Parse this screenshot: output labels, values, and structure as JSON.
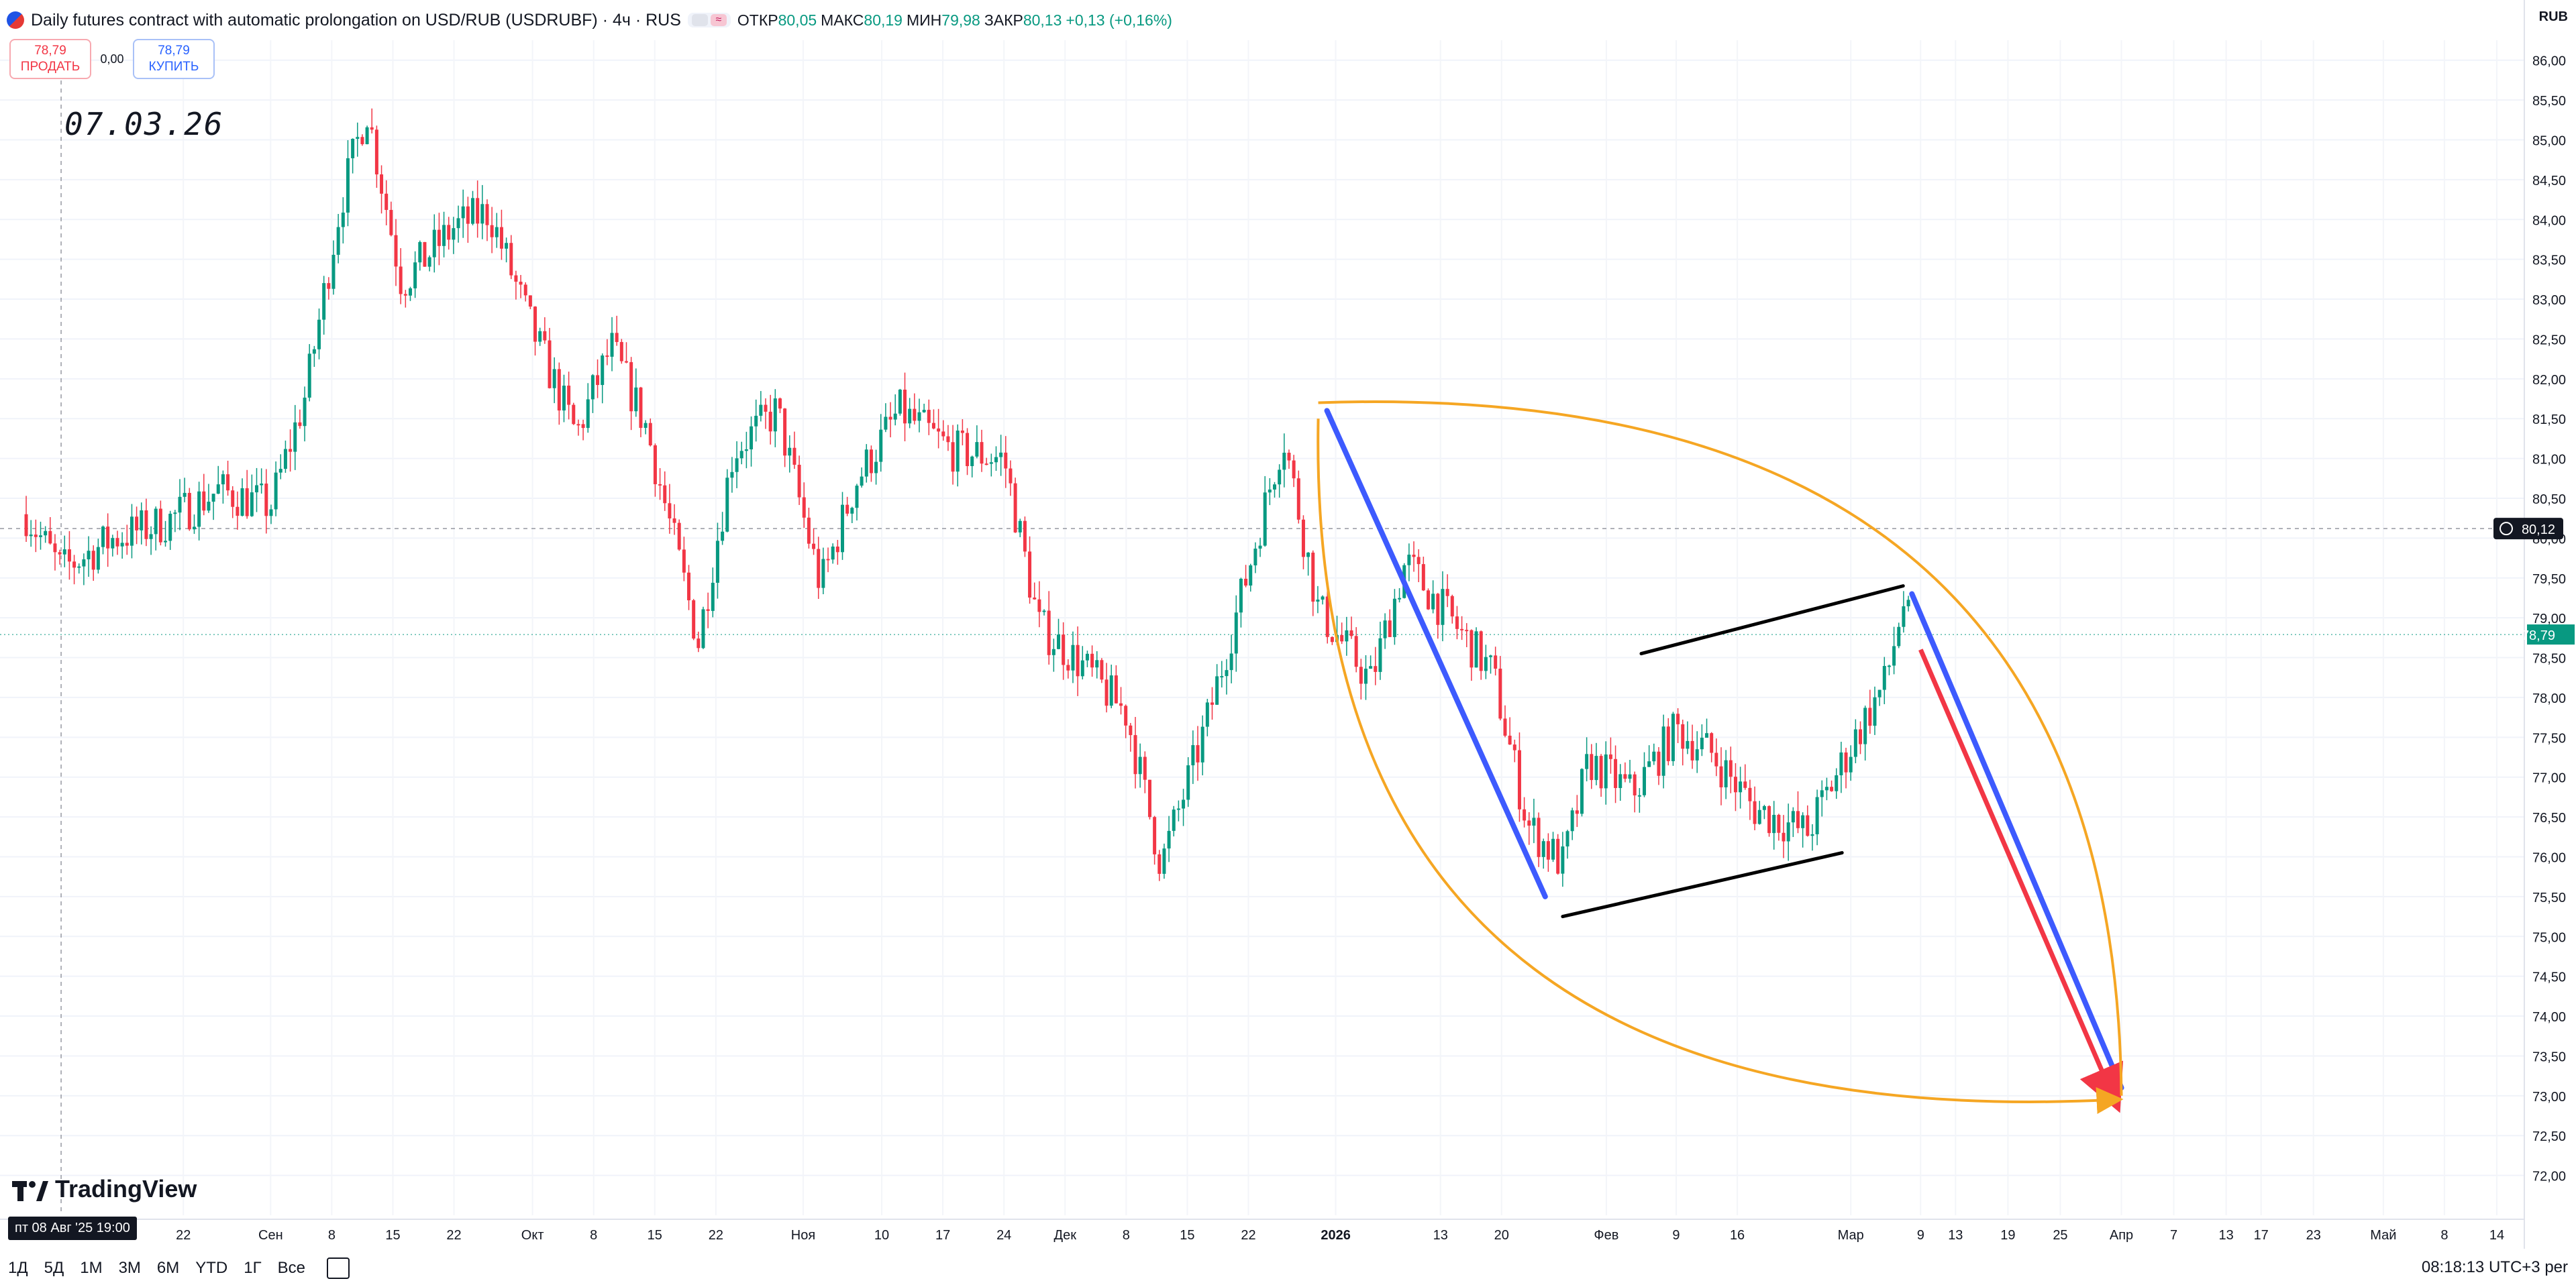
{
  "header": {
    "title": "Daily futures contract with automatic prolongation on USD/RUB (USDRUBF) · 4ч · RUS",
    "ohlc": [
      {
        "label": "ОТКР",
        "value": "80,05"
      },
      {
        "label": "МАКС",
        "value": "80,19"
      },
      {
        "label": "МИН",
        "value": "79,98"
      },
      {
        "label": "ЗАКР",
        "value": "80,13"
      },
      {
        "label": "",
        "value": "+0,13 (+0,16%)"
      }
    ]
  },
  "trade": {
    "sell_price": "78,79",
    "sell_label": "ПРОДАТЬ",
    "spread": "0,00",
    "buy_price": "78,79",
    "buy_label": "КУПИТЬ"
  },
  "annotation_text": "07.03.26",
  "axis": {
    "currency": "RUB"
  },
  "crosshair": {
    "date_label": "пт 08 Авг '25   19:00"
  },
  "bottom_bar": {
    "ranges": [
      "1Д",
      "5Д",
      "1М",
      "3М",
      "6М",
      "YTD",
      "1Г",
      "Все"
    ],
    "time": "08:18:13 UTC+3",
    "extra": "per"
  },
  "brand": {
    "name": "TradingView"
  },
  "colors": {
    "up": "#089981",
    "down": "#f23645",
    "orange": "#f5a623",
    "blue": "#3d5afe",
    "red": "#f23645",
    "black": "#000000",
    "last_price": "#089981"
  },
  "chart_data": {
    "type": "candlestick",
    "title": "",
    "ylim": [
      71.5,
      86.25
    ],
    "yticks": [
      "72,00",
      "72,50",
      "73,00",
      "73,50",
      "74,00",
      "74,50",
      "75,00",
      "75,50",
      "76,00",
      "76,50",
      "77,00",
      "77,50",
      "78,00",
      "78,50",
      "79,00",
      "79,50",
      "80,00",
      "80,50",
      "81,00",
      "81,50",
      "82,00",
      "82,50",
      "83,00",
      "83,50",
      "84,00",
      "84,50",
      "85,00",
      "85,50",
      "86,00"
    ],
    "xticks": [
      "22",
      "Сен",
      "8",
      "15",
      "22",
      "Окт",
      "8",
      "15",
      "22",
      "Ноя",
      "10",
      "17",
      "24",
      "Дек",
      "8",
      "15",
      "22",
      "2026",
      "13",
      "20",
      "Фев",
      "9",
      "16",
      "Мар",
      "9",
      "13",
      "19",
      "25",
      "Апр",
      "7",
      "13",
      "17",
      "23",
      "Май",
      "8",
      "14"
    ],
    "price_labels": {
      "crosshair": "80,12",
      "last": "78,79"
    },
    "close_path": [
      {
        "date": "2025-08-04",
        "close": 80.3
      },
      {
        "date": "2025-08-08",
        "close": 79.6
      },
      {
        "date": "2025-08-14",
        "close": 80.0
      },
      {
        "date": "2025-08-20",
        "close": 80.2
      },
      {
        "date": "2025-08-26",
        "close": 80.6
      },
      {
        "date": "2025-09-01",
        "close": 80.4
      },
      {
        "date": "2025-09-05",
        "close": 81.8
      },
      {
        "date": "2025-09-09",
        "close": 84.2
      },
      {
        "date": "2025-09-12",
        "close": 85.4
      },
      {
        "date": "2025-09-16",
        "close": 83.2
      },
      {
        "date": "2025-09-22",
        "close": 83.9
      },
      {
        "date": "2025-09-26",
        "close": 84.1
      },
      {
        "date": "2025-10-01",
        "close": 82.6
      },
      {
        "date": "2025-10-06",
        "close": 81.3
      },
      {
        "date": "2025-10-10",
        "close": 82.4
      },
      {
        "date": "2025-10-14",
        "close": 81.4
      },
      {
        "date": "2025-10-20",
        "close": 78.7
      },
      {
        "date": "2025-10-24",
        "close": 81.1
      },
      {
        "date": "2025-10-29",
        "close": 81.6
      },
      {
        "date": "2025-11-03",
        "close": 79.4
      },
      {
        "date": "2025-11-07",
        "close": 80.7
      },
      {
        "date": "2025-11-12",
        "close": 81.6
      },
      {
        "date": "2025-11-18",
        "close": 81.1
      },
      {
        "date": "2025-11-24",
        "close": 81.0
      },
      {
        "date": "2025-11-28",
        "close": 78.9
      },
      {
        "date": "2025-12-03",
        "close": 78.4
      },
      {
        "date": "2025-12-08",
        "close": 77.8
      },
      {
        "date": "2025-12-12",
        "close": 75.9
      },
      {
        "date": "2025-12-17",
        "close": 77.6
      },
      {
        "date": "2025-12-22",
        "close": 79.6
      },
      {
        "date": "2025-12-26",
        "close": 81.3
      },
      {
        "date": "2025-12-30",
        "close": 79.1
      },
      {
        "date": "2026-01-05",
        "close": 78.2
      },
      {
        "date": "2026-01-09",
        "close": 79.7
      },
      {
        "date": "2026-01-14",
        "close": 79.0
      },
      {
        "date": "2026-01-19",
        "close": 78.3
      },
      {
        "date": "2026-01-23",
        "close": 76.4
      },
      {
        "date": "2026-01-27",
        "close": 75.9
      },
      {
        "date": "2026-01-30",
        "close": 77.2
      },
      {
        "date": "2026-02-04",
        "close": 76.8
      },
      {
        "date": "2026-02-09",
        "close": 77.6
      },
      {
        "date": "2026-02-13",
        "close": 77.3
      },
      {
        "date": "2026-02-18",
        "close": 76.6
      },
      {
        "date": "2026-02-24",
        "close": 76.3
      },
      {
        "date": "2026-03-02",
        "close": 77.6
      },
      {
        "date": "2026-03-05",
        "close": 78.2
      },
      {
        "date": "2026-03-07",
        "close": 79.2
      },
      {
        "date": "2026-03-08",
        "close": 78.8
      }
    ],
    "drawings": [
      {
        "type": "line",
        "color": "blue",
        "from": {
          "date": "2025-12-31",
          "price": 81.6
        },
        "to": {
          "date": "2026-01-25",
          "price": 75.5
        }
      },
      {
        "type": "line",
        "color": "black",
        "from": {
          "date": "2026-02-05",
          "price": 78.55
        },
        "to": {
          "date": "2026-03-07",
          "price": 79.4
        }
      },
      {
        "type": "line",
        "color": "black",
        "from": {
          "date": "2026-01-27",
          "price": 75.25
        },
        "to": {
          "date": "2026-02-28",
          "price": 76.05
        }
      },
      {
        "type": "line",
        "color": "blue",
        "from": {
          "date": "2026-03-08",
          "price": 79.3
        },
        "to": {
          "date": "2026-04-01",
          "price": 73.1
        }
      },
      {
        "type": "arrow",
        "color": "red",
        "from": {
          "date": "2026-03-09",
          "price": 78.6
        },
        "to": {
          "date": "2026-03-31",
          "price": 73.0
        }
      },
      {
        "type": "curve",
        "color": "orange",
        "from": {
          "date": "2025-12-30",
          "price": 81.7
        },
        "to": {
          "date": "2026-04-01",
          "price": 73.0
        },
        "bulge": "top-right"
      },
      {
        "type": "curve",
        "color": "orange",
        "from": {
          "date": "2025-12-30",
          "price": 81.5
        },
        "to": {
          "date": "2026-03-31",
          "price": 72.95
        },
        "bulge": "bottom-left"
      }
    ]
  }
}
